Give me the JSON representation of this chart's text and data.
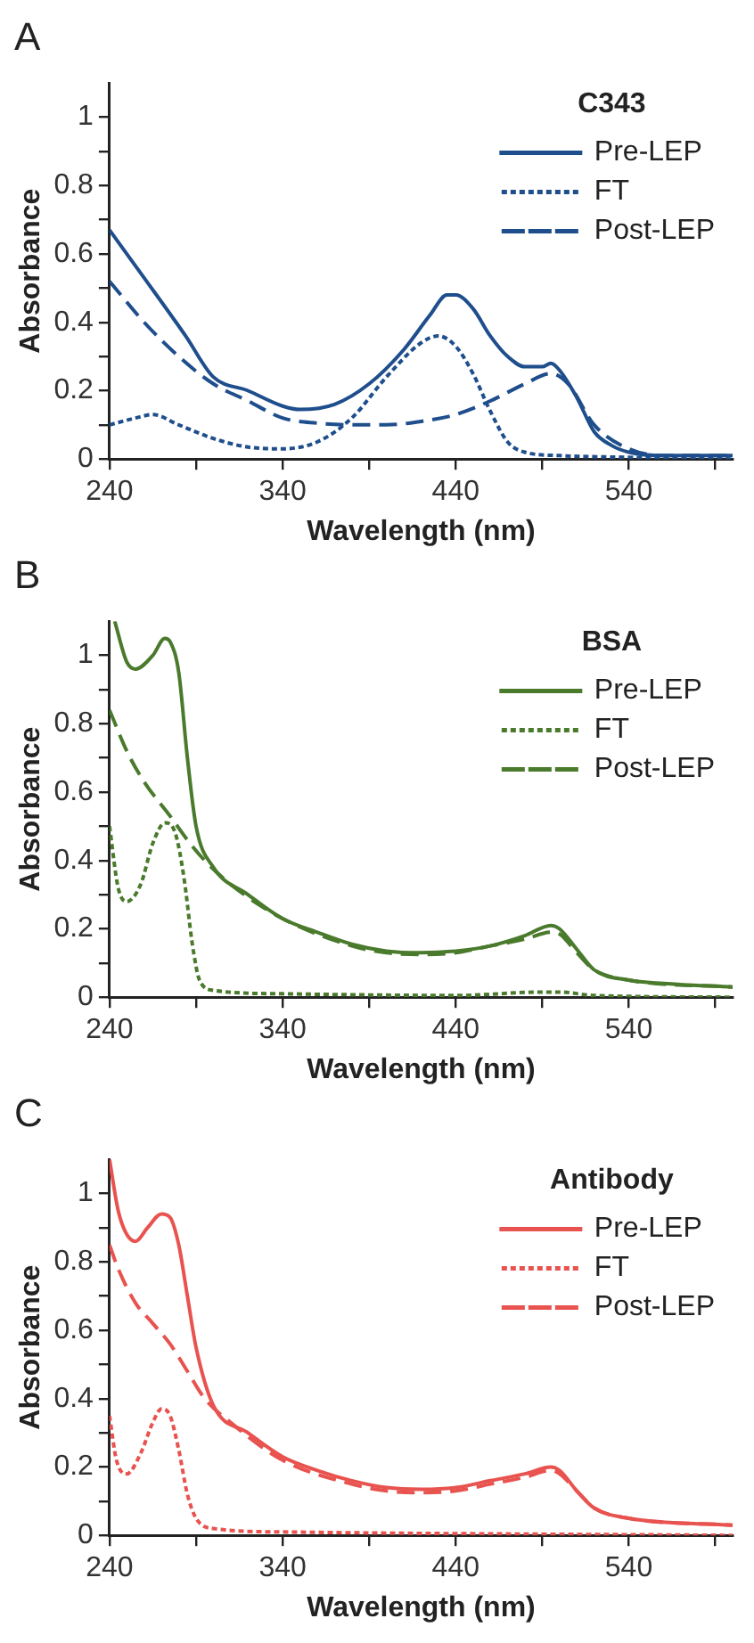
{
  "chart_data": [
    {
      "type": "line",
      "annotations": [
        "A"
      ],
      "legend_title": "C343",
      "xlabel": "Wavelength (nm)",
      "ylabel": "Absorbance",
      "xlim": [
        240,
        600
      ],
      "ylim": [
        0,
        1.1
      ],
      "xticks": [
        240,
        {
          "value": 290,
          "label": null
        },
        340,
        {
          "value": 390,
          "label": null
        },
        440,
        {
          "value": 490,
          "label": null
        },
        540,
        {
          "value": 590,
          "label": null
        }
      ],
      "yticks": [
        0,
        {
          "value": 0.1,
          "label": null
        },
        0.2,
        {
          "value": 0.3,
          "label": null
        },
        0.4,
        {
          "value": 0.5,
          "label": null
        },
        0.6,
        {
          "value": 0.7,
          "label": null
        },
        0.8,
        {
          "value": 0.9,
          "label": null
        },
        1
      ],
      "legend": "top right",
      "marker": "none",
      "series": [
        {
          "name": "Pre-LEP",
          "color": "#1f4e8c",
          "line_style": "solid",
          "x": [
            240,
            260,
            284,
            300,
            320,
            340,
            350,
            370,
            390,
            410,
            425,
            435,
            440,
            450,
            460,
            470,
            480,
            490,
            495,
            500,
            510,
            520,
            530,
            540,
            560,
            600
          ],
          "values": [
            0.67,
            0.53,
            0.36,
            0.24,
            0.2,
            0.155,
            0.145,
            0.16,
            0.22,
            0.32,
            0.42,
            0.48,
            0.48,
            0.44,
            0.36,
            0.3,
            0.27,
            0.27,
            0.28,
            0.26,
            0.18,
            0.08,
            0.04,
            0.02,
            0.01,
            0.01
          ]
        },
        {
          "name": "FT",
          "color": "#1f4e8c",
          "line_style": "dotted",
          "x": [
            240,
            255,
            265,
            280,
            300,
            320,
            340,
            360,
            380,
            400,
            420,
            430,
            440,
            450,
            460,
            470,
            480,
            500,
            540,
            600
          ],
          "values": [
            0.1,
            0.12,
            0.13,
            0.1,
            0.06,
            0.035,
            0.03,
            0.05,
            0.12,
            0.24,
            0.34,
            0.36,
            0.33,
            0.25,
            0.14,
            0.05,
            0.02,
            0.01,
            0.005,
            0
          ]
        },
        {
          "name": "Post-LEP",
          "color": "#1f4e8c",
          "line_style": "dashed",
          "x": [
            240,
            260,
            280,
            300,
            320,
            340,
            360,
            380,
            400,
            420,
            440,
            460,
            480,
            495,
            505,
            520,
            540,
            560,
            600
          ],
          "values": [
            0.52,
            0.4,
            0.3,
            0.22,
            0.17,
            0.12,
            0.105,
            0.1,
            0.1,
            0.11,
            0.13,
            0.17,
            0.22,
            0.25,
            0.22,
            0.1,
            0.03,
            0.01,
            0.01
          ]
        }
      ]
    },
    {
      "type": "line",
      "annotations": [
        "B"
      ],
      "legend_title": "BSA",
      "xlabel": "Wavelength (nm)",
      "ylabel": "Absorbance",
      "xlim": [
        240,
        600
      ],
      "ylim": [
        0,
        1.1
      ],
      "xticks": [
        240,
        {
          "value": 290,
          "label": null
        },
        340,
        {
          "value": 390,
          "label": null
        },
        440,
        {
          "value": 490,
          "label": null
        },
        540,
        {
          "value": 590,
          "label": null
        }
      ],
      "yticks": [
        0,
        {
          "value": 0.1,
          "label": null
        },
        0.2,
        {
          "value": 0.3,
          "label": null
        },
        0.4,
        {
          "value": 0.5,
          "label": null
        },
        0.6,
        {
          "value": 0.7,
          "label": null
        },
        0.8,
        {
          "value": 0.9,
          "label": null
        },
        1
      ],
      "legend": "top right",
      "marker": "none",
      "series": [
        {
          "name": "Pre-LEP",
          "color": "#4a7a2c",
          "line_style": "solid",
          "x": [
            243,
            250,
            255,
            265,
            272,
            275,
            280,
            285,
            290,
            300,
            320,
            340,
            360,
            380,
            400,
            420,
            440,
            460,
            480,
            495,
            500,
            510,
            520,
            540,
            560,
            600
          ],
          "values": [
            1.1,
            0.98,
            0.96,
            1.0,
            1.05,
            1.04,
            0.95,
            0.7,
            0.5,
            0.38,
            0.3,
            0.23,
            0.19,
            0.155,
            0.135,
            0.13,
            0.135,
            0.15,
            0.18,
            0.21,
            0.2,
            0.14,
            0.08,
            0.05,
            0.04,
            0.03
          ]
        },
        {
          "name": "FT",
          "color": "#4a7a2c",
          "line_style": "dotted",
          "x": [
            240,
            245,
            250,
            258,
            265,
            272,
            278,
            283,
            288,
            292,
            300,
            340,
            440,
            490,
            500,
            520,
            600
          ],
          "values": [
            0.5,
            0.32,
            0.28,
            0.33,
            0.45,
            0.51,
            0.48,
            0.35,
            0.15,
            0.05,
            0.02,
            0.01,
            0.005,
            0.015,
            0.015,
            0.005,
            0
          ]
        },
        {
          "name": "Post-LEP",
          "color": "#4a7a2c",
          "line_style": "dashed",
          "x": [
            240,
            250,
            260,
            275,
            285,
            295,
            310,
            340,
            380,
            400,
            420,
            440,
            460,
            480,
            495,
            500,
            510,
            520,
            540,
            600
          ],
          "values": [
            0.84,
            0.72,
            0.63,
            0.53,
            0.46,
            0.4,
            0.33,
            0.23,
            0.15,
            0.13,
            0.125,
            0.13,
            0.15,
            0.17,
            0.19,
            0.185,
            0.13,
            0.08,
            0.05,
            0.03
          ]
        }
      ]
    },
    {
      "type": "line",
      "annotations": [
        "C"
      ],
      "legend_title": "Antibody",
      "xlabel": "Wavelength (nm)",
      "ylabel": "Absorbance",
      "xlim": [
        240,
        600
      ],
      "ylim": [
        0,
        1.1
      ],
      "xticks": [
        240,
        {
          "value": 290,
          "label": null
        },
        340,
        {
          "value": 390,
          "label": null
        },
        440,
        {
          "value": 490,
          "label": null
        },
        540,
        {
          "value": 590,
          "label": null
        }
      ],
      "yticks": [
        0,
        {
          "value": 0.1,
          "label": null
        },
        0.2,
        {
          "value": 0.3,
          "label": null
        },
        0.4,
        {
          "value": 0.5,
          "label": null
        },
        0.6,
        {
          "value": 0.7,
          "label": null
        },
        0.8,
        {
          "value": 0.9,
          "label": null
        },
        1
      ],
      "legend": "top right",
      "marker": "none",
      "series": [
        {
          "name": "Pre-LEP",
          "color": "#e8534f",
          "line_style": "solid",
          "x": [
            240,
            245,
            250,
            255,
            262,
            270,
            275,
            280,
            285,
            290,
            300,
            320,
            340,
            360,
            380,
            400,
            420,
            440,
            460,
            480,
            495,
            500,
            510,
            520,
            540,
            600
          ],
          "values": [
            1.1,
            0.95,
            0.88,
            0.86,
            0.9,
            0.94,
            0.93,
            0.85,
            0.7,
            0.55,
            0.38,
            0.3,
            0.23,
            0.19,
            0.16,
            0.14,
            0.135,
            0.14,
            0.16,
            0.18,
            0.2,
            0.19,
            0.13,
            0.08,
            0.05,
            0.03
          ]
        },
        {
          "name": "FT",
          "color": "#e8534f",
          "line_style": "dotted",
          "x": [
            240,
            244,
            250,
            258,
            265,
            270,
            275,
            280,
            285,
            290,
            300,
            340,
            600
          ],
          "values": [
            0.35,
            0.22,
            0.18,
            0.24,
            0.33,
            0.37,
            0.35,
            0.25,
            0.12,
            0.05,
            0.02,
            0.01,
            0
          ]
        },
        {
          "name": "Post-LEP",
          "color": "#e8534f",
          "line_style": "dashed",
          "x": [
            240,
            245,
            255,
            265,
            275,
            285,
            295,
            310,
            340,
            380,
            400,
            420,
            440,
            460,
            480,
            495,
            500,
            510,
            520,
            540,
            600
          ],
          "values": [
            0.85,
            0.78,
            0.68,
            0.62,
            0.56,
            0.48,
            0.4,
            0.33,
            0.22,
            0.15,
            0.13,
            0.125,
            0.13,
            0.15,
            0.17,
            0.19,
            0.18,
            0.13,
            0.08,
            0.05,
            0.03
          ]
        }
      ]
    }
  ]
}
